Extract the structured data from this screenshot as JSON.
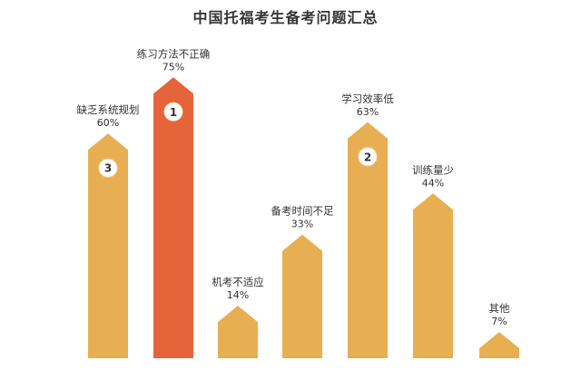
{
  "chart_data": {
    "type": "bar",
    "title": "中国托福考生备考问题汇总",
    "categories": [
      "缺乏系统规划",
      "练习方法不正确",
      "机考不适应",
      "备考时间不足",
      "学习效率低",
      "训练量少",
      "其他"
    ],
    "values": [
      60,
      75,
      14,
      33,
      63,
      44,
      7
    ],
    "value_labels": [
      "60%",
      "75%",
      "14%",
      "33%",
      "63%",
      "44%",
      "7%"
    ],
    "unit": "%",
    "ranks": [
      "3",
      "1",
      "",
      "",
      "2",
      "",
      ""
    ],
    "colors": {
      "default": "#E8AE52",
      "highlight": "#E5643A",
      "badge_fill": "#ffffff",
      "badge_text": "#333333",
      "label_text": "#333333"
    },
    "highlight_index": 1,
    "ylim": [
      0,
      100
    ],
    "grid": false,
    "legend": "none"
  }
}
